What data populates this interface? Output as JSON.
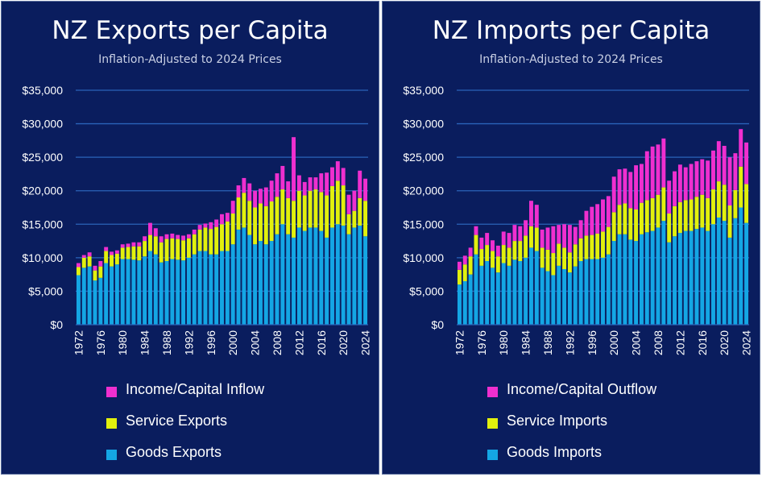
{
  "colors": {
    "background": "#0a1d5e",
    "gridline": "#2a63b9",
    "goods": "#14a6e4",
    "service": "#e2f00d",
    "income": "#ef2fcf",
    "text": "#ffffff"
  },
  "chart_data": [
    {
      "type": "bar",
      "stacked": true,
      "title": "NZ Exports per Capita",
      "subtitle": "Inflation-Adjusted to 2024 Prices",
      "ylim": [
        0,
        35000
      ],
      "ytick_labels": [
        "$0",
        "$5,000",
        "$10,000",
        "$15,000",
        "$20,000",
        "$25,000",
        "$30,000",
        "$35,000"
      ],
      "xtick_labels": [
        "1972",
        "1976",
        "1980",
        "1984",
        "1988",
        "1992",
        "1996",
        "2000",
        "2004",
        "2008",
        "2012",
        "2016",
        "2020",
        "2024"
      ],
      "categories": [
        1972,
        1973,
        1974,
        1975,
        1976,
        1977,
        1978,
        1979,
        1980,
        1981,
        1982,
        1983,
        1984,
        1985,
        1986,
        1987,
        1988,
        1989,
        1990,
        1991,
        1992,
        1993,
        1994,
        1995,
        1996,
        1997,
        1998,
        1999,
        2000,
        2001,
        2002,
        2003,
        2004,
        2005,
        2006,
        2007,
        2008,
        2009,
        2010,
        2011,
        2012,
        2013,
        2014,
        2015,
        2016,
        2017,
        2018,
        2019,
        2020,
        2021,
        2022,
        2023,
        2024
      ],
      "series": [
        {
          "name": "Goods Exports",
          "values": [
            7400,
            8500,
            8700,
            6600,
            7000,
            9200,
            8700,
            9000,
            9800,
            9800,
            9700,
            9600,
            10200,
            11000,
            10500,
            9300,
            9500,
            9800,
            9700,
            9600,
            10000,
            10500,
            11000,
            11000,
            10500,
            10500,
            11000,
            11000,
            12000,
            14200,
            14500,
            13400,
            12000,
            12500,
            12000,
            12500,
            13500,
            15000,
            13500,
            13000,
            14500,
            14000,
            14500,
            14500,
            14000,
            13000,
            14500,
            15000,
            14800,
            13500,
            14500,
            14800,
            13200
          ]
        },
        {
          "name": "Service Exports",
          "values": [
            1200,
            1500,
            1500,
            1500,
            1700,
            1800,
            1700,
            1600,
            1700,
            1800,
            2000,
            2100,
            2300,
            2400,
            2700,
            3000,
            3300,
            3100,
            3100,
            3000,
            2900,
            3000,
            3200,
            3500,
            3800,
            4100,
            4000,
            4400,
            4600,
            4800,
            5200,
            5100,
            5500,
            5600,
            5700,
            5900,
            5600,
            5200,
            5400,
            5500,
            5500,
            5300,
            5500,
            5700,
            5800,
            6300,
            6200,
            6500,
            6000,
            3000,
            2500,
            4100,
            5300
          ]
        },
        {
          "name": "Income/Capital Inflow",
          "values": [
            600,
            400,
            600,
            700,
            800,
            600,
            500,
            500,
            500,
            500,
            600,
            600,
            700,
            1800,
            1200,
            900,
            700,
            700,
            600,
            700,
            600,
            700,
            700,
            600,
            1000,
            1100,
            1500,
            1300,
            1900,
            1800,
            2200,
            2600,
            2500,
            2200,
            2800,
            3100,
            3500,
            3500,
            2500,
            9500,
            2300,
            2000,
            2000,
            1800,
            2800,
            3400,
            2800,
            2900,
            2600,
            2900,
            3000,
            4100,
            3300
          ]
        }
      ]
    },
    {
      "type": "bar",
      "stacked": true,
      "title": "NZ Imports per Capita",
      "subtitle": "Inflation-Adjusted to 2024 Prices",
      "ylim": [
        0,
        35000
      ],
      "ytick_labels": [
        "$0",
        "$5,000",
        "$10,000",
        "$15,000",
        "$20,000",
        "$25,000",
        "$30,000",
        "$35,000"
      ],
      "xtick_labels": [
        "1972",
        "1976",
        "1980",
        "1984",
        "1988",
        "1992",
        "1996",
        "2000",
        "2004",
        "2008",
        "2012",
        "2016",
        "2020",
        "2024"
      ],
      "categories": [
        1972,
        1973,
        1974,
        1975,
        1976,
        1977,
        1978,
        1979,
        1980,
        1981,
        1982,
        1983,
        1984,
        1985,
        1986,
        1987,
        1988,
        1989,
        1990,
        1991,
        1992,
        1993,
        1994,
        1995,
        1996,
        1997,
        1998,
        1999,
        2000,
        2001,
        2002,
        2003,
        2004,
        2005,
        2006,
        2007,
        2008,
        2009,
        2010,
        2011,
        2012,
        2013,
        2014,
        2015,
        2016,
        2017,
        2018,
        2019,
        2020,
        2021,
        2022,
        2023,
        2024
      ],
      "series": [
        {
          "name": "Goods Imports",
          "values": [
            6000,
            6500,
            7500,
            10500,
            8800,
            9500,
            8500,
            7800,
            9200,
            8800,
            9700,
            9500,
            10000,
            11500,
            11000,
            8500,
            8000,
            7400,
            8800,
            8300,
            7800,
            8700,
            9500,
            9800,
            9800,
            9800,
            10000,
            10500,
            12500,
            13500,
            13500,
            12700,
            12500,
            13500,
            13800,
            14000,
            14500,
            15500,
            12300,
            13200,
            13700,
            14000,
            14000,
            14300,
            14500,
            14000,
            15000,
            16000,
            15500,
            13000,
            15900,
            17500,
            15200
          ]
        },
        {
          "name": "Service Imports",
          "values": [
            2200,
            2500,
            2700,
            2900,
            2500,
            2400,
            2500,
            2400,
            2700,
            2700,
            2800,
            3000,
            3300,
            3200,
            3500,
            3000,
            3200,
            3300,
            3300,
            3200,
            3000,
            3300,
            3400,
            3500,
            3600,
            3800,
            3900,
            4100,
            4300,
            4400,
            4600,
            4700,
            4700,
            4700,
            4800,
            4900,
            4900,
            5000,
            4300,
            4500,
            4600,
            4600,
            4700,
            4800,
            4900,
            4900,
            5200,
            5400,
            5400,
            4800,
            4200,
            6100,
            5800
          ]
        },
        {
          "name": "Income/Capital Outflow",
          "values": [
            1200,
            1300,
            1300,
            1300,
            1700,
            1800,
            1600,
            1600,
            2000,
            2200,
            2400,
            2200,
            2300,
            3800,
            3400,
            2700,
            3300,
            4000,
            2800,
            3500,
            4100,
            2600,
            2700,
            3700,
            4200,
            4400,
            4800,
            4600,
            5300,
            5300,
            5200,
            5400,
            6600,
            5800,
            7300,
            7700,
            7500,
            7300,
            4900,
            5200,
            5600,
            4900,
            5300,
            5300,
            5300,
            5600,
            5800,
            6000,
            5800,
            7200,
            5500,
            5600,
            6200
          ]
        }
      ]
    }
  ]
}
